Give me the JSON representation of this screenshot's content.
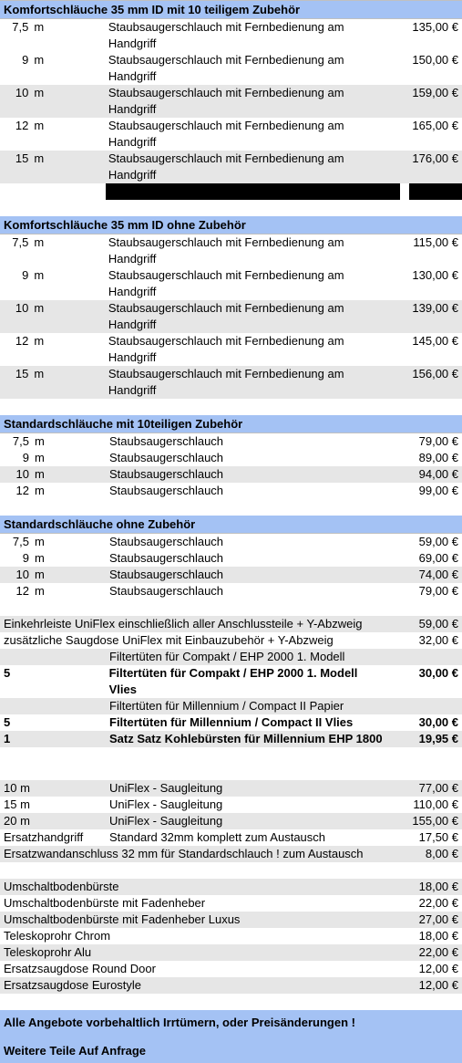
{
  "colors": {
    "header_bg": "#a4c2f4",
    "row_alt": "#e6e6e6",
    "text": "#000000",
    "black": "#000000"
  },
  "sections": [
    {
      "title": "Komfortschläuche 35 mm ID mit 10 teiligem Zubehör",
      "rows": [
        {
          "len": "7,5",
          "unit": "m",
          "desc": "Staubsaugerschlauch mit Fernbedienung am Handgriff",
          "price": "135,00 €",
          "alt": false
        },
        {
          "len": "9",
          "unit": "m",
          "desc": "Staubsaugerschlauch mit Fernbedienung am Handgriff",
          "price": "150,00 €",
          "alt": false
        },
        {
          "len": "10",
          "unit": "m",
          "desc": "Staubsaugerschlauch mit Fernbedienung am Handgriff",
          "price": "159,00 €",
          "alt": true
        },
        {
          "len": "12",
          "unit": "m",
          "desc": "Staubsaugerschlauch mit Fernbedienung am Handgriff",
          "price": "165,00 €",
          "alt": false
        },
        {
          "len": "15",
          "unit": "m",
          "desc": "Staubsaugerschlauch mit Fernbedienung am Handgriff",
          "price": "176,00 €",
          "alt": true
        }
      ],
      "blackbar": true
    },
    {
      "title": "Komfortschläuche 35 mm ID ohne Zubehör",
      "rows": [
        {
          "len": "7,5",
          "unit": "m",
          "desc": "Staubsaugerschlauch mit Fernbedienung am Handgriff",
          "price": "115,00 €",
          "alt": false
        },
        {
          "len": "9",
          "unit": "m",
          "desc": "Staubsaugerschlauch mit Fernbedienung am Handgriff",
          "price": "130,00 €",
          "alt": false
        },
        {
          "len": "10",
          "unit": "m",
          "desc": "Staubsaugerschlauch mit Fernbedienung am Handgriff",
          "price": "139,00 €",
          "alt": true
        },
        {
          "len": "12",
          "unit": "m",
          "desc": "Staubsaugerschlauch mit Fernbedienung am Handgriff",
          "price": "145,00 €",
          "alt": false
        },
        {
          "len": "15",
          "unit": "m",
          "desc": "Staubsaugerschlauch mit Fernbedienung am Handgriff",
          "price": "156,00 €",
          "alt": true
        }
      ]
    },
    {
      "title": "Standardschläuche mit 10teiligen Zubehör",
      "rows": [
        {
          "len": "7,5",
          "unit": "m",
          "desc": "Staubsaugerschlauch",
          "price": "79,00 €",
          "alt": false
        },
        {
          "len": "9",
          "unit": "m",
          "desc": "Staubsaugerschlauch",
          "price": "89,00 €",
          "alt": false
        },
        {
          "len": "10",
          "unit": "m",
          "desc": "Staubsaugerschlauch",
          "price": "94,00 €",
          "alt": true
        },
        {
          "len": "12",
          "unit": "m",
          "desc": "Staubsaugerschlauch",
          "price": "99,00 €",
          "alt": false
        }
      ]
    },
    {
      "title": "Standardschläuche ohne Zubehör",
      "rows": [
        {
          "len": "7,5",
          "unit": "m",
          "desc": "Staubsaugerschlauch",
          "price": "59,00 €",
          "alt": false
        },
        {
          "len": "9",
          "unit": "m",
          "desc": "Staubsaugerschlauch",
          "price": "69,00 €",
          "alt": false
        },
        {
          "len": "10",
          "unit": "m",
          "desc": "Staubsaugerschlauch",
          "price": "74,00 €",
          "alt": true
        },
        {
          "len": "12",
          "unit": "m",
          "desc": "Staubsaugerschlauch",
          "price": "79,00 €",
          "alt": false
        }
      ]
    }
  ],
  "misc1": [
    {
      "desc": "Einkehrleiste UniFlex einschließlich aller Anschlussteile + Y-Abzweig",
      "price": "59,00 €",
      "alt": true,
      "bold": false
    },
    {
      "desc": "zusätzliche Saugdose UniFlex mit Einbauzubehör + Y-Abzweig",
      "price": "32,00 €",
      "alt": false,
      "bold": false
    }
  ],
  "misc2": [
    {
      "qty": "",
      "desc": "Filtertüten für Compakt / EHP 2000 1. Modell",
      "price": "",
      "alt": true,
      "bold": false
    },
    {
      "qty": "5",
      "desc": "Filtertüten für Compakt / EHP 2000 1. Modell Vlies",
      "price": "30,00 €",
      "alt": false,
      "bold": true
    },
    {
      "qty": "",
      "desc": "Filtertüten für Millennium / Compact II Papier",
      "price": "",
      "alt": true,
      "bold": false
    },
    {
      "qty": "5",
      "desc": "Filtertüten für Millennium / Compact II Vlies",
      "price": "30,00 €",
      "alt": false,
      "bold": true
    },
    {
      "qty": "1",
      "desc": "Satz Satz Kohlebürsten für Millennium EHP 1800",
      "price": "19,95 €",
      "alt": true,
      "bold": true
    }
  ],
  "misc3": [
    {
      "len": "10 m",
      "desc": "UniFlex - Saugleitung",
      "price": "77,00 €",
      "alt": true
    },
    {
      "len": "15 m",
      "desc": "UniFlex - Saugleitung",
      "price": "110,00 €",
      "alt": false
    },
    {
      "len": "20 m",
      "desc": "UniFlex - Saugleitung",
      "price": "155,00 €",
      "alt": true
    },
    {
      "len": "Ersatzhandgriff",
      "desc": "Standard 32mm komplett zum Austausch",
      "price": "17,50 €",
      "alt": false
    },
    {
      "len": "Ersatzwandanschluss 32 mm für Standardschlauch ! zum Austausch",
      "desc": "",
      "price": "8,00 €",
      "alt": true
    }
  ],
  "misc4": [
    {
      "desc": "Umschaltbodenbürste",
      "price": "18,00 €",
      "alt": true
    },
    {
      "desc": "Umschaltbodenbürste mit Fadenheber",
      "price": "22,00 €",
      "alt": false
    },
    {
      "desc": "Umschaltbodenbürste mit Fadenheber Luxus",
      "price": "27,00 €",
      "alt": true
    },
    {
      "desc": "Teleskoprohr Chrom",
      "price": "18,00 €",
      "alt": false
    },
    {
      "desc": "Teleskoprohr Alu",
      "price": "22,00 €",
      "alt": true
    },
    {
      "desc": "Ersatzsaugdose Round Door",
      "price": "12,00 €",
      "alt": false
    },
    {
      "desc": "Ersatzsaugdose Eurostyle",
      "price": "12,00 €",
      "alt": true
    }
  ],
  "footer": {
    "line1": "Alle Angebote vorbehaltlich Irrtümern, oder Preisänderungen !",
    "line2": "Weitere Teile Auf Anfrage"
  }
}
